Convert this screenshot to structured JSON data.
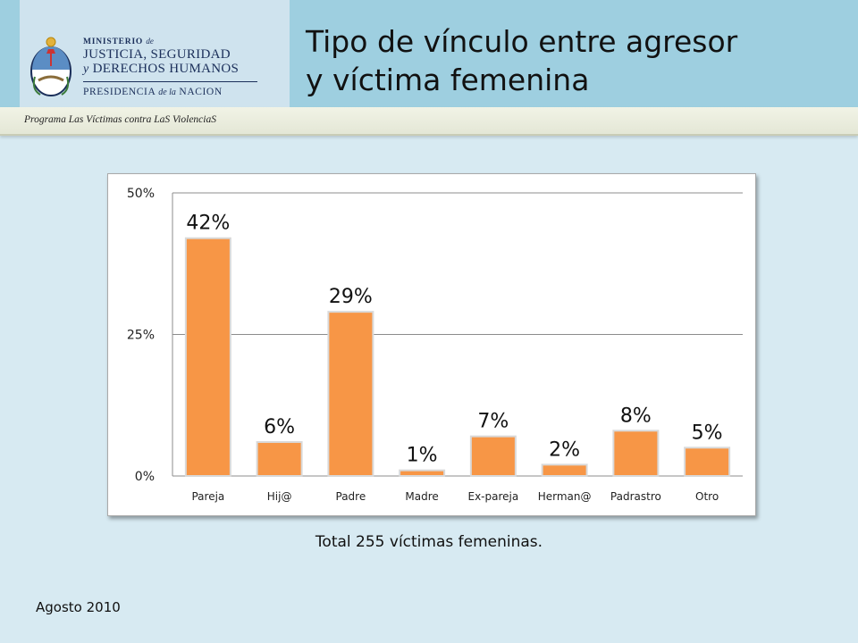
{
  "header": {
    "ministry_line1": "MINISTERIO",
    "ministry_line1_de": "de",
    "ministry_line2": "JUSTICIA, SEGURIDAD",
    "ministry_line3_y": "y",
    "ministry_line3": "DERECHOS HUMANOS",
    "presidency_a": "PRESIDENCIA",
    "presidency_de_la": "de la",
    "presidency_b": "NACION",
    "title_line1": "Tipo de vínculo entre agresor",
    "title_line2": "y víctima femenina",
    "program": "Programa Las Víctimas contra LaS ViolenciaS"
  },
  "chart_data": {
    "type": "bar",
    "categories": [
      "Pareja",
      "Hij@",
      "Padre",
      "Madre",
      "Ex-pareja",
      "Herman@",
      "Padrastro",
      "Otro"
    ],
    "values": [
      42,
      6,
      29,
      1,
      7,
      2,
      8,
      5
    ],
    "data_labels": [
      "42%",
      "6%",
      "29%",
      "1%",
      "7%",
      "2%",
      "8%",
      "5%"
    ],
    "ylim": [
      0,
      50
    ],
    "yticks": [
      0,
      25,
      50
    ],
    "ytick_labels": [
      "0%",
      "25%",
      "50%"
    ],
    "grid": true,
    "bar_color": "#f79646",
    "bar_border": "#d9d9d9"
  },
  "footer": {
    "total": "Total 255 víctimas femeninas.",
    "date": "Agosto 2010"
  },
  "colors": {
    "header_band": "#9ecfe0",
    "logo_panel": "#cfe3ee",
    "background": "#d7eaf2",
    "program_bar": "#eceee0",
    "ministry_text": "#1b2f5a"
  }
}
